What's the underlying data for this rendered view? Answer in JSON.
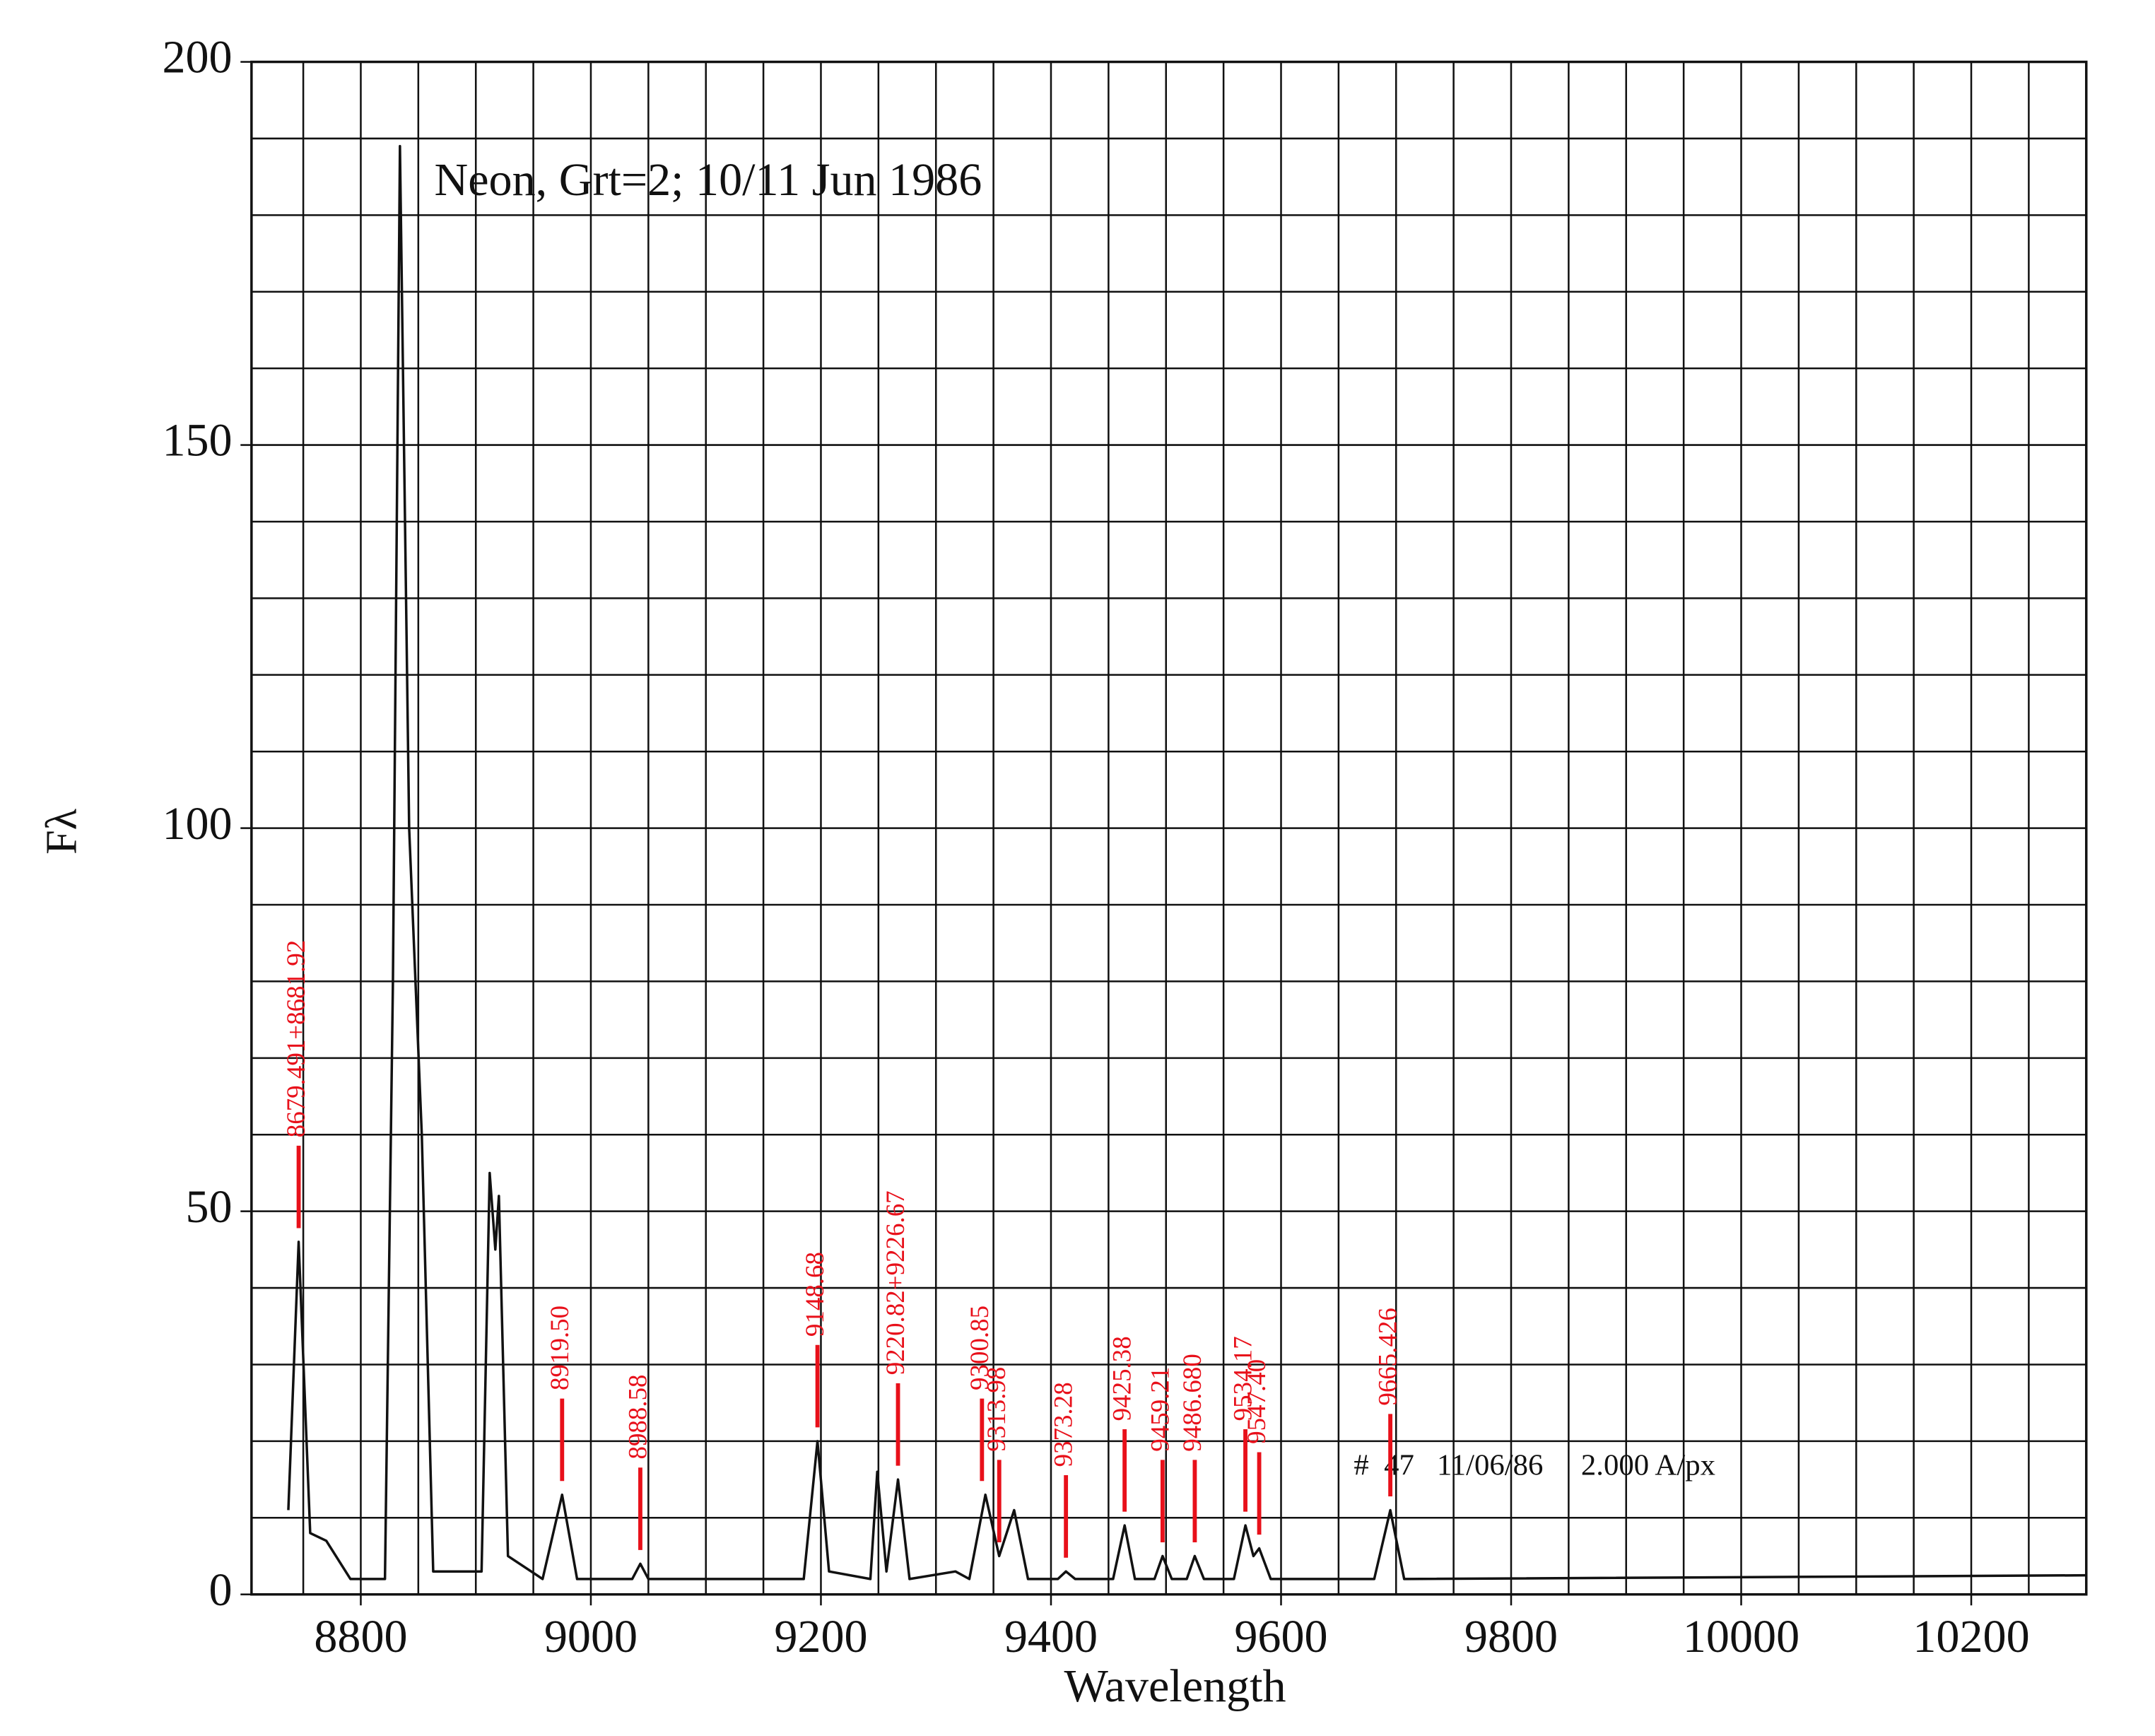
{
  "chart_data": {
    "type": "line",
    "title": "Neon, Grt=2; 10/11 Jun 1986",
    "footer": "#  47   11/06/86     2.000 A/px",
    "x_label": "Wavelength",
    "y_label": "Fλ",
    "color": "#111111",
    "annotation_color": "#e8101a",
    "xlim": [
      8705,
      10300
    ],
    "ylim": [
      0,
      200
    ],
    "xticks": [
      8800,
      9000,
      9200,
      9400,
      9600,
      9800,
      10000,
      10200
    ],
    "yticks": [
      0,
      50,
      100,
      150,
      200
    ],
    "x_grid": [
      8750,
      8800,
      8850,
      8900,
      8950,
      9000,
      9050,
      9100,
      9150,
      9200,
      9250,
      9300,
      9350,
      9400,
      9450,
      9500,
      9550,
      9600,
      9650,
      9700,
      9750,
      9800,
      9850,
      9900,
      9950,
      10000,
      10050,
      10100,
      10150,
      10200,
      10250
    ],
    "y_grid": [
      10,
      20,
      30,
      40,
      50,
      60,
      70,
      80,
      90,
      100,
      110,
      120,
      130,
      140,
      150,
      160,
      170,
      180,
      190
    ],
    "x": [
      8737,
      8746,
      8756,
      8770,
      8791,
      8821,
      8828,
      8834,
      8842,
      8853,
      8863,
      8905,
      8912,
      8917,
      8920,
      8928,
      8958,
      8975,
      8988,
      9036,
      9043,
      9050,
      9185,
      9197,
      9207,
      9243,
      9249,
      9257,
      9267,
      9277,
      9317,
      9329,
      9343,
      9355,
      9368,
      9380,
      9406,
      9413,
      9421,
      9454,
      9464,
      9473,
      9490,
      9497,
      9505,
      9518,
      9525,
      9533,
      9559,
      9569,
      9576,
      9581,
      9591,
      9681,
      9695,
      9707,
      10300
    ],
    "values": [
      11,
      46,
      8,
      7,
      2,
      2,
      80,
      189,
      100,
      60,
      3,
      3,
      55,
      45,
      52,
      5,
      2,
      13,
      2,
      2,
      4,
      2,
      2,
      20,
      3,
      2,
      16,
      3,
      15,
      2,
      3,
      2,
      13,
      5,
      11,
      2,
      2,
      3,
      2,
      2,
      9,
      2,
      2,
      5,
      2,
      2,
      5,
      2,
      2,
      9,
      5,
      6,
      2,
      2,
      11,
      2,
      2.5
    ],
    "annotations": [
      {
        "text": "8679.491+8681.92",
        "x": 8746
      },
      {
        "text": "8919.50",
        "x": 8975
      },
      {
        "text": "8988.58",
        "x": 9043
      },
      {
        "text": "9148.68",
        "x": 9197
      },
      {
        "text": "9220.82+9226.67",
        "x": 9267
      },
      {
        "text": "9300.85",
        "x": 9340
      },
      {
        "text": "9313.98",
        "x": 9355
      },
      {
        "text": "9373.28",
        "x": 9413
      },
      {
        "text": "9425.38",
        "x": 9464
      },
      {
        "text": "9459.21",
        "x": 9497
      },
      {
        "text": "9486.680",
        "x": 9525
      },
      {
        "text": "9534.17",
        "x": 9569
      },
      {
        "text": "9547.40",
        "x": 9581
      },
      {
        "text": "9665.426",
        "x": 9695
      }
    ]
  }
}
